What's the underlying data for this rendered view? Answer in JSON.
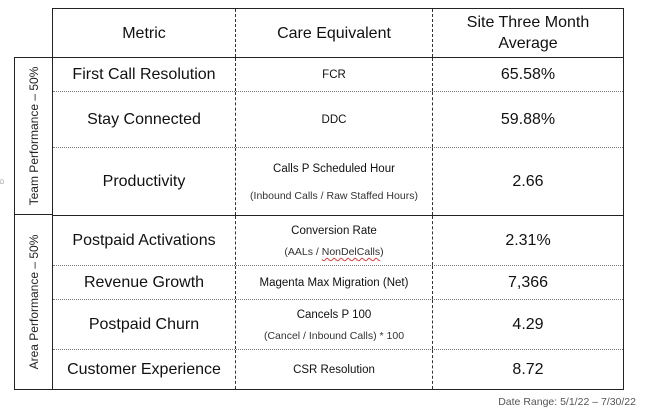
{
  "stub_text": "D",
  "headers": {
    "metric": "Metric",
    "care": "Care Equivalent",
    "avg_line1": "Site Three Month",
    "avg_line2": "Average"
  },
  "groups": {
    "team": "Team Performance – 50%",
    "area": "Area Performance – 50%"
  },
  "rows": [
    {
      "metric": "First Call Resolution",
      "care": "FCR",
      "care_sub": "",
      "value": "65.58%"
    },
    {
      "metric": "Stay Connected",
      "care": "DDC",
      "care_sub": "",
      "value": "59.88%"
    },
    {
      "metric": "Productivity",
      "care": "Calls P Scheduled Hour",
      "care_sub": "(Inbound Calls / Raw Staffed Hours)",
      "value": "2.66"
    },
    {
      "metric": "Postpaid Activations",
      "care": "Conversion Rate",
      "care_sub_a": "(AALs / ",
      "care_sub_b": "NonDelCalls",
      "care_sub_c": ")",
      "value": "2.31%"
    },
    {
      "metric": "Revenue Growth",
      "care": "Magenta Max Migration (Net)",
      "care_sub": "",
      "value": "7,366"
    },
    {
      "metric": "Postpaid Churn",
      "care": "Cancels P 100",
      "care_sub": "(Cancel / Inbound Calls) * 100",
      "value": "4.29"
    },
    {
      "metric": "Customer Experience",
      "care": "CSR Resolution",
      "care_sub": "",
      "value": "8.72"
    }
  ],
  "footnote": "Date Range: 5/1/22 – 7/30/22"
}
